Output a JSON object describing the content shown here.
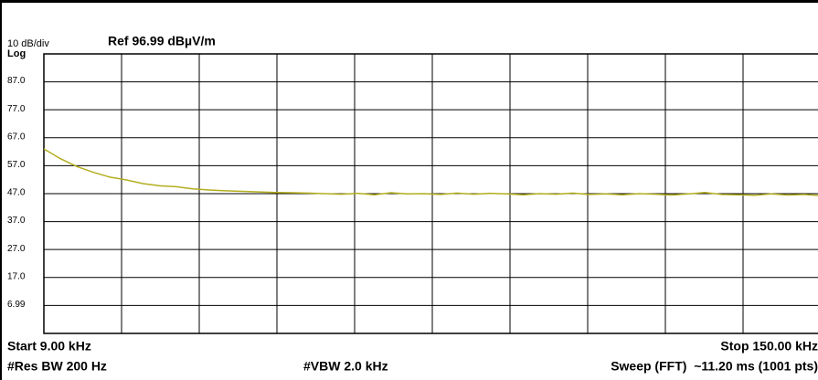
{
  "chart_data": {
    "type": "line",
    "title": "Ref 96.99 dBµV/m",
    "scale_label": "10 dB/div",
    "scale_type": "Log",
    "start_label": "Start 9.00 kHz",
    "stop_label": "Stop 150.00 kHz",
    "res_bw": "#Res BW 200 Hz",
    "vbw": "#VBW 2.0 kHz",
    "sweep": "Sweep (FFT)  ~11.20 ms (1001 pts)",
    "color": "#b3ae1e",
    "grid": true,
    "xlim": [
      9,
      150
    ],
    "ylim": [
      -3.01,
      96.99
    ],
    "yticks": [
      {
        "value": 87,
        "label": "87.0"
      },
      {
        "value": 77,
        "label": "77.0"
      },
      {
        "value": 67,
        "label": "67.0"
      },
      {
        "value": 57,
        "label": "57.0"
      },
      {
        "value": 47,
        "label": "47.0"
      },
      {
        "value": 37,
        "label": "37.0"
      },
      {
        "value": 27,
        "label": "27.0"
      },
      {
        "value": 17,
        "label": "17.0"
      },
      6.99
    ],
    "x": [
      9,
      12,
      15,
      18,
      21,
      24,
      27,
      30,
      33,
      36,
      39,
      42,
      45,
      48,
      51,
      54,
      57,
      60,
      63,
      66,
      69,
      72,
      75,
      78,
      81,
      84,
      87,
      90,
      93,
      96,
      99,
      102,
      105,
      108,
      111,
      114,
      117,
      120,
      123,
      126,
      129,
      132,
      135,
      138,
      141,
      144,
      147,
      150
    ],
    "values": [
      63.0,
      59.5,
      56.7,
      54.6,
      52.9,
      51.9,
      50.6,
      49.8,
      49.5,
      48.7,
      48.3,
      48.0,
      47.8,
      47.6,
      47.4,
      47.3,
      47.2,
      47.0,
      46.8,
      47.1,
      46.6,
      47.3,
      46.9,
      47.0,
      46.7,
      47.2,
      46.8,
      47.1,
      46.9,
      46.6,
      47.0,
      46.8,
      47.2,
      46.7,
      46.9,
      46.6,
      47.0,
      46.8,
      46.5,
      46.9,
      47.4,
      46.7,
      46.6,
      46.4,
      46.9,
      46.5,
      46.7,
      46.3
    ]
  }
}
